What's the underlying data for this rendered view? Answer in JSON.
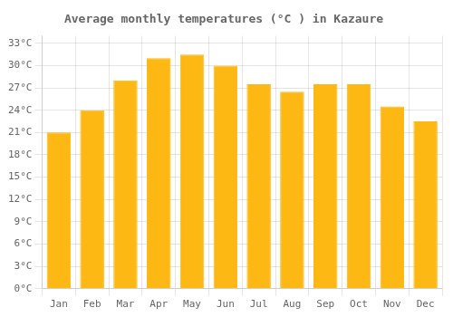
{
  "chart_data": {
    "type": "bar",
    "title": "Average monthly temperatures (°C ) in Kazaure",
    "categories": [
      "Jan",
      "Feb",
      "Mar",
      "Apr",
      "May",
      "Jun",
      "Jul",
      "Aug",
      "Sep",
      "Oct",
      "Nov",
      "Dec"
    ],
    "values": [
      21,
      24,
      28,
      31,
      31.5,
      30,
      27.5,
      26.5,
      27.5,
      27.5,
      24.5,
      22.5
    ],
    "color": "#FDB813",
    "ylim": [
      0,
      34
    ],
    "yticks": [
      {
        "value": 0,
        "label": "0°C"
      },
      {
        "value": 3,
        "label": "3°C"
      },
      {
        "value": 6,
        "label": "6°C"
      },
      {
        "value": 9,
        "label": "9°C"
      },
      {
        "value": 12,
        "label": "12°C"
      },
      {
        "value": 15,
        "label": "15°C"
      },
      {
        "value": 18,
        "label": "18°C"
      },
      {
        "value": 21,
        "label": "21°C"
      },
      {
        "value": 24,
        "label": "24°C"
      },
      {
        "value": 27,
        "label": "27°C"
      },
      {
        "value": 30,
        "label": "30°C"
      },
      {
        "value": 33,
        "label": "33°C"
      }
    ],
    "grid": true
  }
}
